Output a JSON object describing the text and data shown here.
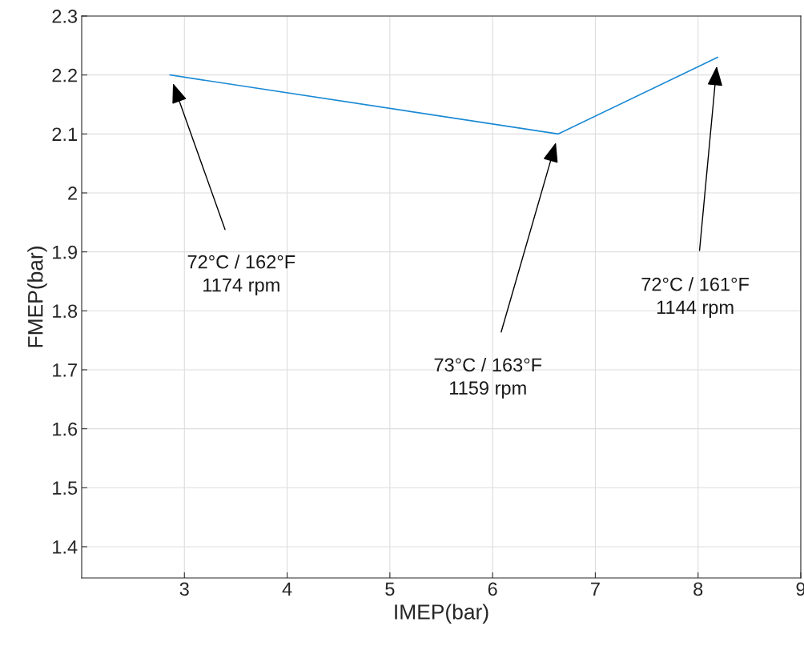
{
  "chart_data": {
    "type": "line",
    "xlabel": "IMEP(bar)",
    "ylabel": "FMEP(bar)",
    "x": [
      2.86,
      6.64,
      8.19
    ],
    "series": [
      {
        "color": "#1a8ad4",
        "values": [
          2.2,
          2.1,
          2.23
        ]
      }
    ],
    "xlim": [
      2,
      9
    ],
    "xticks": [
      3,
      4,
      5,
      6,
      7,
      8,
      9
    ],
    "ylim": [
      1.347,
      2.3
    ],
    "yticks": [
      1.4,
      1.5,
      1.6,
      1.7,
      1.8,
      1.9,
      2,
      2.1,
      2.2,
      2.3
    ],
    "grid": true,
    "marker": "none",
    "line_style": "solid",
    "annotations": [
      "72°C / 162°F\n1174 rpm",
      "73°C / 163°F\n1159 rpm",
      "72°C / 161°F\n1144 rpm"
    ]
  }
}
